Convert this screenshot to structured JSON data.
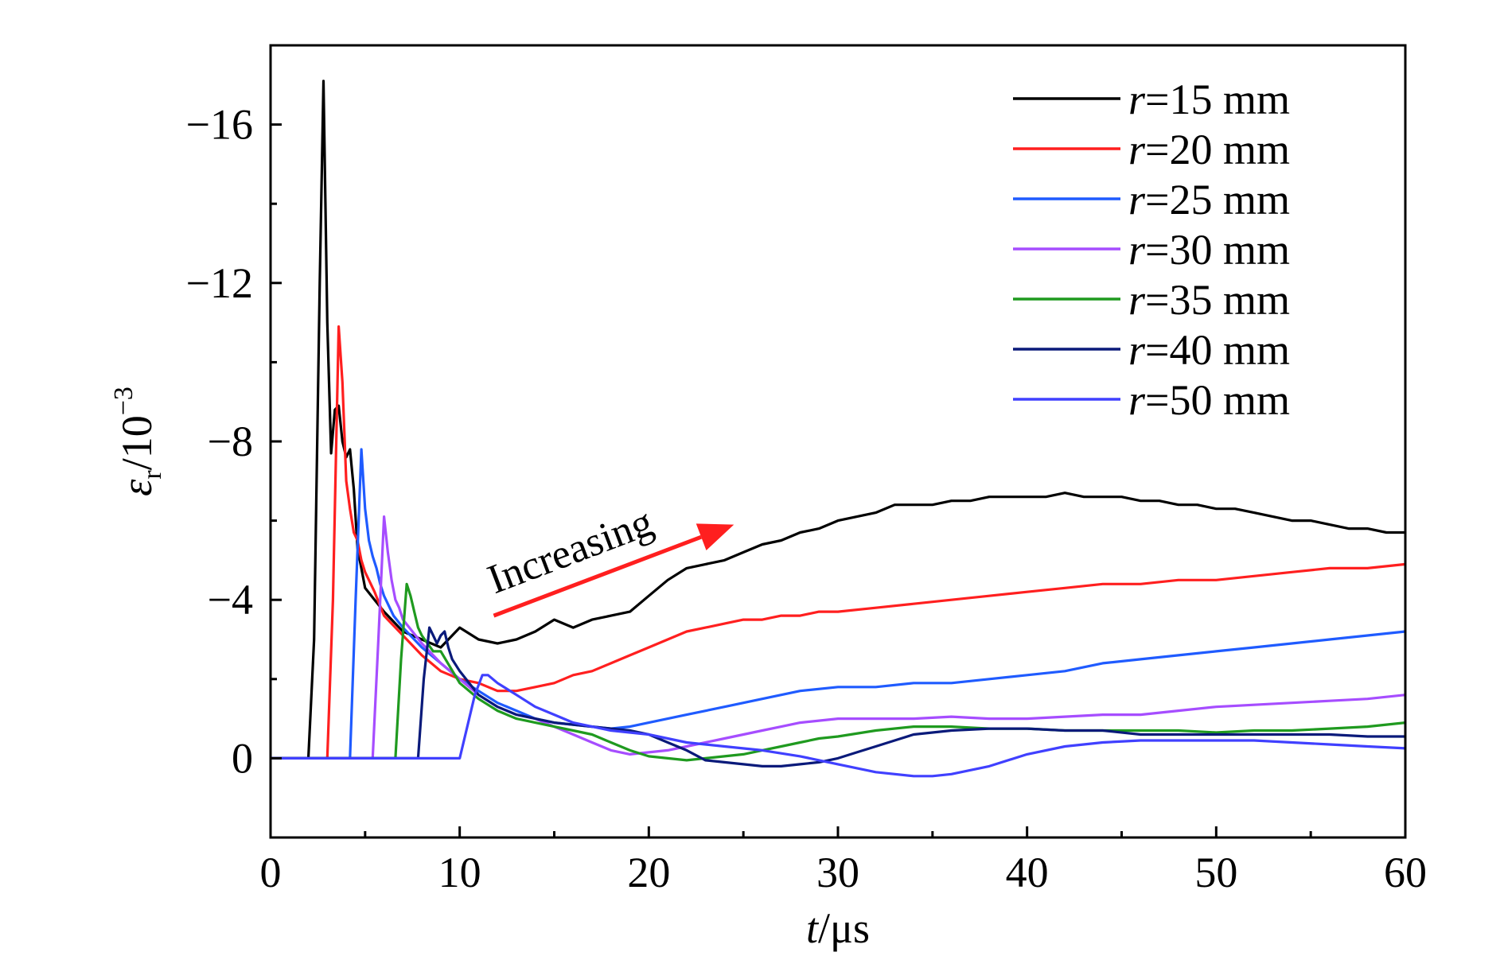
{
  "chart_data": {
    "type": "line",
    "title": "",
    "xlabel": {
      "italic": "t",
      "rest": "/μs"
    },
    "ylabel": {
      "symbol": "ε",
      "subscript": "r",
      "rest": "/10",
      "superscript": "−3"
    },
    "xlim": [
      0,
      60
    ],
    "ylim": [
      2,
      -18
    ],
    "y_inverted": true,
    "grid": false,
    "legend_position": "top-right",
    "xticks": [
      0,
      10,
      20,
      30,
      40,
      50,
      60
    ],
    "xtick_labels": [
      "0",
      "10",
      "20",
      "30",
      "40",
      "50",
      "60"
    ],
    "yticks": [
      -16,
      -12,
      -8,
      -4,
      0
    ],
    "ytick_labels": [
      "−16",
      "−12",
      "−8",
      "−4",
      "0"
    ],
    "annotation": {
      "text": "Increasing",
      "color": "#ff1f1f",
      "arrow_from": [
        11.8,
        -3.6
      ],
      "arrow_to": [
        24.5,
        -5.9
      ]
    },
    "series": [
      {
        "legend_italic": "r",
        "legend_rest": "=15 mm",
        "color": "#000000",
        "x": [
          0,
          2.0,
          2.3,
          2.6,
          2.8,
          3.0,
          3.2,
          3.4,
          3.6,
          3.8,
          4.0,
          4.2,
          4.4,
          4.6,
          4.8,
          5.0,
          5.5,
          6,
          7,
          8,
          9,
          10,
          11,
          12,
          13,
          14,
          15,
          16,
          17,
          18,
          19,
          20,
          21,
          22,
          23,
          24,
          25,
          26,
          27,
          28,
          29,
          30,
          31,
          32,
          33,
          34,
          35,
          36,
          37,
          38,
          39,
          40,
          41,
          42,
          43,
          44,
          45,
          46,
          47,
          48,
          49,
          50,
          51,
          52,
          53,
          54,
          55,
          56,
          57,
          58,
          59,
          60
        ],
        "y": [
          0,
          0,
          -3,
          -12,
          -17.1,
          -11,
          -7.7,
          -8.8,
          -8.9,
          -8,
          -7.6,
          -7.8,
          -6.8,
          -5.3,
          -4.8,
          -4.3,
          -4.0,
          -3.7,
          -3.2,
          -3.0,
          -2.8,
          -3.3,
          -3.0,
          -2.9,
          -3.0,
          -3.2,
          -3.5,
          -3.3,
          -3.5,
          -3.6,
          -3.7,
          -4.1,
          -4.5,
          -4.8,
          -4.9,
          -5.0,
          -5.2,
          -5.4,
          -5.5,
          -5.7,
          -5.8,
          -6.0,
          -6.1,
          -6.2,
          -6.4,
          -6.4,
          -6.4,
          -6.5,
          -6.5,
          -6.6,
          -6.6,
          -6.6,
          -6.6,
          -6.7,
          -6.6,
          -6.6,
          -6.6,
          -6.5,
          -6.5,
          -6.4,
          -6.4,
          -6.3,
          -6.3,
          -6.2,
          -6.1,
          -6.0,
          -6.0,
          -5.9,
          -5.8,
          -5.8,
          -5.7,
          -5.7
        ]
      },
      {
        "legend_italic": "r",
        "legend_rest": "=20 mm",
        "color": "#ff1f1f",
        "x": [
          0,
          3.0,
          3.3,
          3.6,
          3.8,
          4.0,
          4.2,
          4.4,
          4.6,
          4.8,
          5.0,
          5.5,
          6,
          7,
          8,
          9,
          10,
          11,
          12,
          13,
          14,
          15,
          16,
          17,
          18,
          19,
          20,
          21,
          22,
          23,
          24,
          25,
          26,
          27,
          28,
          29,
          30,
          32,
          34,
          36,
          38,
          40,
          42,
          44,
          46,
          48,
          50,
          52,
          54,
          56,
          58,
          60
        ],
        "y": [
          0,
          0,
          -4,
          -10.9,
          -9.5,
          -7.0,
          -6.3,
          -5.7,
          -5.5,
          -5.0,
          -4.7,
          -4.2,
          -3.6,
          -3.1,
          -2.6,
          -2.2,
          -2.0,
          -1.9,
          -1.7,
          -1.7,
          -1.8,
          -1.9,
          -2.1,
          -2.2,
          -2.4,
          -2.6,
          -2.8,
          -3.0,
          -3.2,
          -3.3,
          -3.4,
          -3.5,
          -3.5,
          -3.6,
          -3.6,
          -3.7,
          -3.7,
          -3.8,
          -3.9,
          -4.0,
          -4.1,
          -4.2,
          -4.3,
          -4.4,
          -4.4,
          -4.5,
          -4.5,
          -4.6,
          -4.7,
          -4.8,
          -4.8,
          -4.9
        ]
      },
      {
        "legend_italic": "r",
        "legend_rest": "=25 mm",
        "color": "#1f5bff",
        "x": [
          0,
          4.2,
          4.5,
          4.8,
          5.0,
          5.2,
          5.4,
          5.6,
          5.8,
          6.0,
          6.5,
          7,
          8,
          9,
          10,
          11,
          12,
          13,
          14,
          15,
          16,
          17,
          18,
          19,
          20,
          22,
          24,
          26,
          28,
          30,
          32,
          34,
          36,
          38,
          40,
          42,
          44,
          46,
          48,
          50,
          52,
          54,
          56,
          58,
          60
        ],
        "y": [
          0,
          0,
          -4,
          -7.8,
          -6.3,
          -5.5,
          -5.1,
          -4.8,
          -4.4,
          -4.1,
          -3.6,
          -3.3,
          -2.8,
          -2.4,
          -2.0,
          -1.7,
          -1.4,
          -1.2,
          -1.0,
          -0.9,
          -0.85,
          -0.8,
          -0.75,
          -0.8,
          -0.9,
          -1.1,
          -1.3,
          -1.5,
          -1.7,
          -1.8,
          -1.8,
          -1.9,
          -1.9,
          -2.0,
          -2.1,
          -2.2,
          -2.4,
          -2.5,
          -2.6,
          -2.7,
          -2.8,
          -2.9,
          -3.0,
          -3.1,
          -3.2
        ]
      },
      {
        "legend_italic": "r",
        "legend_rest": "=30 mm",
        "color": "#a64dff",
        "x": [
          0,
          5.4,
          5.7,
          6.0,
          6.2,
          6.4,
          6.6,
          6.8,
          7.0,
          7.5,
          8,
          9,
          10,
          11,
          12,
          13,
          14,
          15,
          16,
          17,
          18,
          19,
          20,
          21,
          22,
          23,
          24,
          25,
          26,
          27,
          28,
          29,
          30,
          32,
          34,
          36,
          38,
          40,
          42,
          44,
          46,
          48,
          50,
          52,
          54,
          56,
          58,
          60
        ],
        "y": [
          0,
          0,
          -3,
          -6.1,
          -5.2,
          -4.5,
          -4.0,
          -3.8,
          -3.5,
          -3.2,
          -2.9,
          -2.4,
          -2.0,
          -1.6,
          -1.3,
          -1.1,
          -1.0,
          -0.8,
          -0.6,
          -0.4,
          -0.2,
          -0.1,
          -0.15,
          -0.2,
          -0.3,
          -0.4,
          -0.5,
          -0.6,
          -0.7,
          -0.8,
          -0.9,
          -0.95,
          -1.0,
          -1.0,
          -1.0,
          -1.05,
          -1.0,
          -1.0,
          -1.05,
          -1.1,
          -1.1,
          -1.2,
          -1.3,
          -1.35,
          -1.4,
          -1.45,
          -1.5,
          -1.6
        ]
      },
      {
        "legend_italic": "r",
        "legend_rest": "=35 mm",
        "color": "#1f9a1f",
        "x": [
          0,
          6.6,
          6.9,
          7.2,
          7.4,
          7.6,
          7.8,
          8.0,
          8.3,
          8.6,
          9,
          9.5,
          10,
          11,
          12,
          13,
          14,
          15,
          16,
          17,
          18,
          19,
          20,
          21,
          22,
          23,
          24,
          25,
          26,
          27,
          28,
          29,
          30,
          32,
          34,
          36,
          38,
          40,
          42,
          44,
          46,
          48,
          50,
          52,
          54,
          56,
          58,
          60
        ],
        "y": [
          0,
          0,
          -2.5,
          -4.4,
          -4.1,
          -3.7,
          -3.3,
          -3.1,
          -2.9,
          -2.7,
          -2.7,
          -2.3,
          -1.9,
          -1.5,
          -1.2,
          -1.0,
          -0.9,
          -0.8,
          -0.7,
          -0.6,
          -0.4,
          -0.2,
          -0.05,
          0.0,
          0.05,
          0.0,
          -0.05,
          -0.1,
          -0.2,
          -0.3,
          -0.4,
          -0.5,
          -0.55,
          -0.7,
          -0.8,
          -0.8,
          -0.75,
          -0.75,
          -0.7,
          -0.7,
          -0.7,
          -0.7,
          -0.65,
          -0.7,
          -0.7,
          -0.75,
          -0.8,
          -0.9
        ]
      },
      {
        "legend_italic": "r",
        "legend_rest": "=40 mm",
        "color": "#0a1a7a",
        "x": [
          0,
          7.8,
          8.1,
          8.4,
          8.6,
          8.8,
          9.0,
          9.2,
          9.4,
          9.6,
          10,
          10.5,
          11,
          12,
          13,
          14,
          15,
          16,
          17,
          18,
          19,
          20,
          21,
          22,
          23,
          24,
          25,
          26,
          27,
          28,
          29,
          30,
          31,
          32,
          33,
          34,
          36,
          38,
          40,
          42,
          44,
          46,
          48,
          50,
          52,
          54,
          56,
          58,
          60
        ],
        "y": [
          0,
          0,
          -2,
          -3.3,
          -3.1,
          -2.9,
          -3.1,
          -3.2,
          -2.8,
          -2.5,
          -2.2,
          -1.9,
          -1.6,
          -1.3,
          -1.1,
          -1.0,
          -0.9,
          -0.85,
          -0.8,
          -0.75,
          -0.7,
          -0.6,
          -0.4,
          -0.2,
          0.05,
          0.1,
          0.15,
          0.2,
          0.2,
          0.15,
          0.1,
          0.0,
          -0.15,
          -0.3,
          -0.45,
          -0.6,
          -0.7,
          -0.75,
          -0.75,
          -0.7,
          -0.7,
          -0.6,
          -0.6,
          -0.6,
          -0.6,
          -0.6,
          -0.6,
          -0.55,
          -0.55
        ]
      },
      {
        "legend_italic": "r",
        "legend_rest": "=50 mm",
        "color": "#4040ff",
        "x": [
          0,
          10.0,
          10.4,
          10.8,
          11.2,
          11.5,
          12,
          13,
          14,
          15,
          16,
          17,
          18,
          20,
          22,
          24,
          26,
          28,
          30,
          32,
          34,
          35,
          36,
          38,
          40,
          42,
          44,
          46,
          48,
          50,
          52,
          54,
          56,
          58,
          60
        ],
        "y": [
          0,
          0,
          -0.8,
          -1.6,
          -2.1,
          -2.1,
          -1.9,
          -1.6,
          -1.3,
          -1.1,
          -0.9,
          -0.8,
          -0.7,
          -0.6,
          -0.4,
          -0.3,
          -0.2,
          -0.05,
          0.15,
          0.35,
          0.45,
          0.45,
          0.4,
          0.2,
          -0.1,
          -0.3,
          -0.4,
          -0.45,
          -0.45,
          -0.45,
          -0.45,
          -0.4,
          -0.35,
          -0.3,
          -0.25
        ]
      }
    ]
  }
}
